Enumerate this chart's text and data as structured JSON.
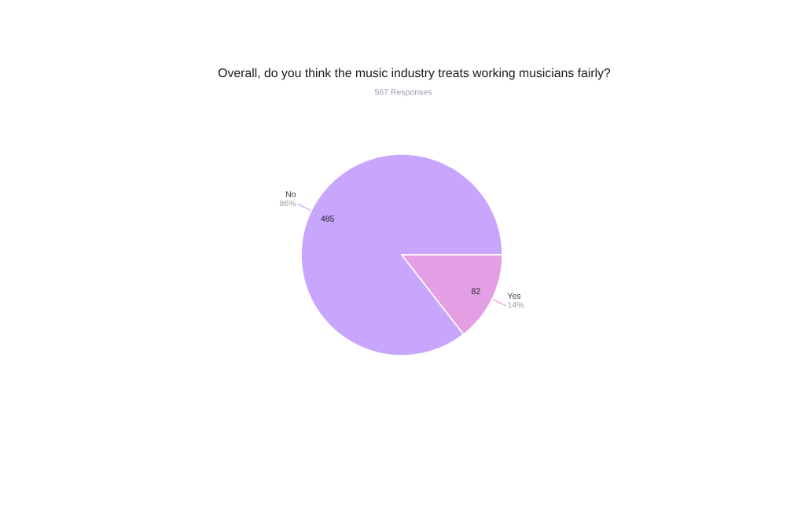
{
  "chart_data": {
    "type": "pie",
    "title": "Overall, do you think the music industry treats working musicians fairly?",
    "subtitle": "567 Responses",
    "categories": [
      "No",
      "Yes"
    ],
    "values": [
      485,
      82
    ],
    "colors": [
      "#c9a6fd",
      "#e49fe4"
    ],
    "value_labels": [
      "485",
      "82"
    ],
    "annotations": [
      "86%",
      "14%"
    ]
  }
}
